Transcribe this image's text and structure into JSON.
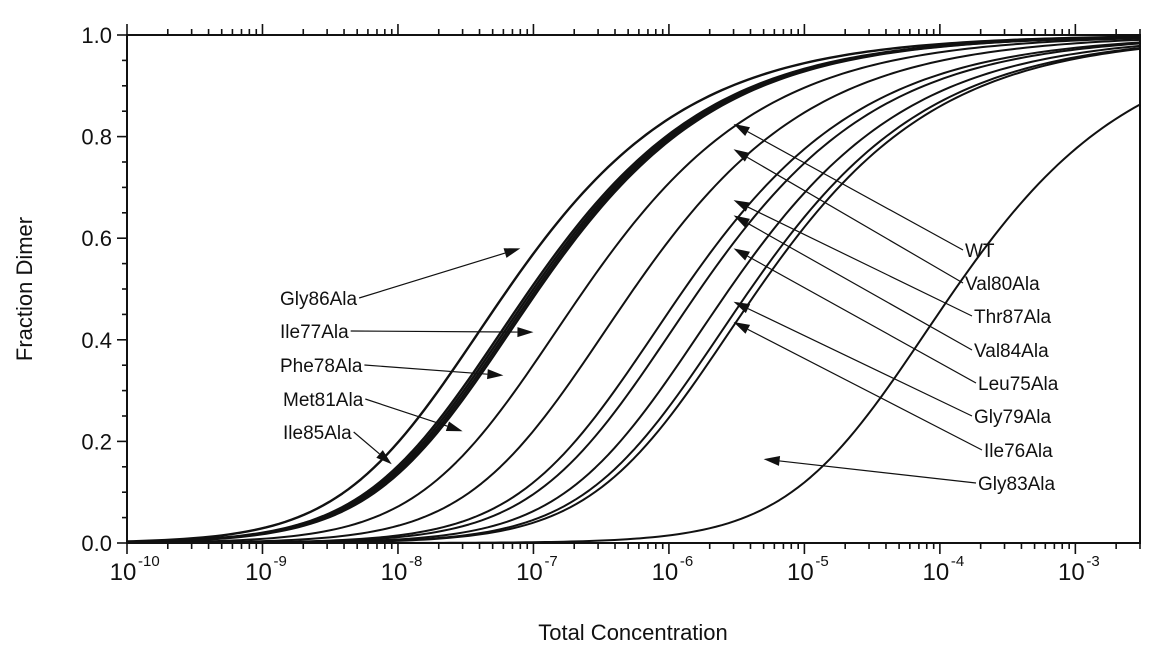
{
  "chart_data": {
    "type": "line",
    "title": "",
    "xlabel": "Total Concentration",
    "ylabel": "Fraction Dimer",
    "x_scale": "log",
    "xlim": [
      1e-10,
      0.003
    ],
    "ylim": [
      0,
      1.0
    ],
    "x_tick_labels": [
      {
        "base": "10",
        "exp": "-10",
        "value": 1e-10
      },
      {
        "base": "10",
        "exp": "-9",
        "value": 1e-09
      },
      {
        "base": "10",
        "exp": "-8",
        "value": 1e-08
      },
      {
        "base": "10",
        "exp": "-7",
        "value": 1e-07
      },
      {
        "base": "10",
        "exp": "-6",
        "value": 1e-06
      },
      {
        "base": "10",
        "exp": "-5",
        "value": 1e-05
      },
      {
        "base": "10",
        "exp": "-4",
        "value": 0.0001
      },
      {
        "base": "10",
        "exp": "-3",
        "value": 0.001
      }
    ],
    "y_tick_labels": [
      "0.0",
      "0.2",
      "0.4",
      "0.6",
      "0.8",
      "1.0"
    ],
    "y_tick_values": [
      0.0,
      0.2,
      0.4,
      0.6,
      0.8,
      1.0
    ],
    "grid": false,
    "legend": "none",
    "series": [
      {
        "name": "Gly86Ala",
        "Kd": 6.5e-08,
        "arrow_to": {
          "x": 8e-08,
          "y": 0.58
        }
      },
      {
        "name": "Ile77Ala",
        "Kd": 9.5e-08,
        "arrow_to": {
          "x": 1e-07,
          "y": 0.415
        }
      },
      {
        "name": "Phe78Ala",
        "Kd": 1e-07,
        "arrow_to": {
          "x": 6e-08,
          "y": 0.33
        }
      },
      {
        "name": "Met81Ala",
        "Kd": 1.05e-07,
        "arrow_to": {
          "x": 3e-08,
          "y": 0.22
        }
      },
      {
        "name": "Ile85Ala",
        "Kd": 1.1e-07,
        "arrow_to": {
          "x": 9e-09,
          "y": 0.155
        }
      },
      {
        "name": "WT",
        "Kd": 2.4e-07,
        "arrow_to": {
          "x": 3e-06,
          "y": 0.825
        }
      },
      {
        "name": "Val80Ala",
        "Kd": 5.5e-07,
        "arrow_to": {
          "x": 3e-06,
          "y": 0.775
        }
      },
      {
        "name": "Thr87Ala",
        "Kd": 1.3e-06,
        "arrow_to": {
          "x": 3e-06,
          "y": 0.675
        }
      },
      {
        "name": "Val84Ala",
        "Kd": 1.7e-06,
        "arrow_to": {
          "x": 3e-06,
          "y": 0.645
        }
      },
      {
        "name": "Leu75Ala",
        "Kd": 2.8e-06,
        "arrow_to": {
          "x": 3e-06,
          "y": 0.58
        }
      },
      {
        "name": "Gly79Ala",
        "Kd": 4e-06,
        "arrow_to": {
          "x": 3e-06,
          "y": 0.475
        }
      },
      {
        "name": "Ile76Ala",
        "Kd": 4.6e-06,
        "arrow_to": {
          "x": 3e-06,
          "y": 0.435
        }
      },
      {
        "name": "Gly83Ala",
        "Kd": 0.00013,
        "arrow_to": {
          "x": 5e-06,
          "y": 0.165
        }
      }
    ]
  }
}
